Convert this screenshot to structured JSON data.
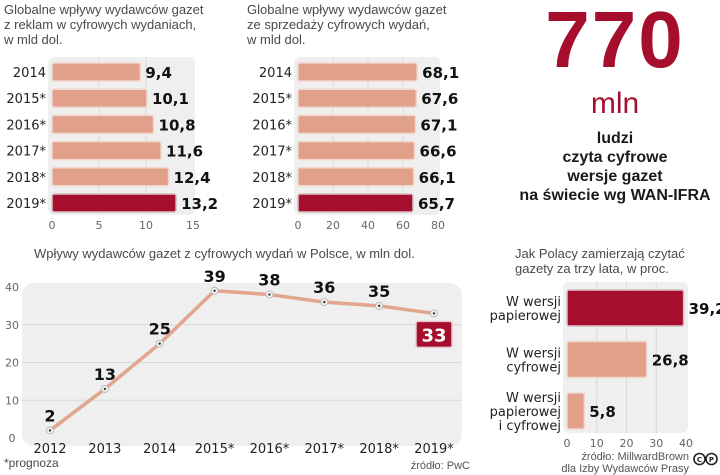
{
  "colors": {
    "accent": "#a50f2d",
    "bar": "#e0a08a",
    "line": "#e2a58e",
    "panel": "#efefef",
    "grid": "#d8d8d8"
  },
  "chart_data": [
    {
      "id": "ads",
      "type": "bar",
      "orientation": "horizontal",
      "title": "Globalne wpływy wydawców gazet\nz reklam w cyfrowych wydaniach,\nw mld dol.",
      "categories": [
        "2014",
        "2015*",
        "2016*",
        "2017*",
        "2018*",
        "2019*"
      ],
      "values": [
        9.4,
        10.1,
        10.8,
        11.6,
        12.4,
        13.2
      ],
      "value_labels": [
        "9,4",
        "10,1",
        "10,8",
        "11,6",
        "12,4",
        "13,2"
      ],
      "highlight_index": 5,
      "xlim": [
        0,
        15
      ],
      "xticks": [
        0,
        5,
        10,
        15
      ],
      "grid": true
    },
    {
      "id": "sales",
      "type": "bar",
      "orientation": "horizontal",
      "title": "Globalne wpływy wydawców gazet\nze sprzedaży cyfrowych wydań,\nw mld dol.",
      "categories": [
        "2014",
        "2015*",
        "2016*",
        "2017*",
        "2018*",
        "2019*"
      ],
      "values": [
        68.1,
        67.6,
        67.1,
        66.6,
        66.1,
        65.7
      ],
      "value_labels": [
        "68,1",
        "67,6",
        "67,1",
        "66,6",
        "66,1",
        "65,7"
      ],
      "highlight_index": 5,
      "xlim": [
        0,
        80
      ],
      "xticks": [
        0,
        20,
        40,
        60,
        80
      ],
      "grid": true
    },
    {
      "id": "poland",
      "type": "line",
      "title": "Wpływy wydawców gazet z cyfrowych wydań w Polsce, w mln dol.",
      "x": [
        "2012",
        "2013",
        "2014",
        "2015*",
        "2016*",
        "2017*",
        "2018*",
        "2019*"
      ],
      "values": [
        2,
        13,
        25,
        39,
        38,
        36,
        35,
        33
      ],
      "value_labels": [
        "2",
        "13",
        "25",
        "39",
        "38",
        "36",
        "35",
        "33"
      ],
      "highlight_index": 7,
      "ylim": [
        0,
        40
      ],
      "yticks": [
        0,
        10,
        20,
        30,
        40
      ],
      "grid": true,
      "footnote": "*prognoza",
      "source": "źródło: PwC"
    },
    {
      "id": "survey",
      "type": "bar",
      "orientation": "horizontal",
      "title": "Jak Polacy zamierzają czytać\ngazety za trzy lata, w proc.",
      "categories": [
        "W wersji\npapierowej",
        "W wersji\ncyfrowej",
        "W wersji\npapierowej\ni cyfrowej"
      ],
      "values": [
        39.2,
        26.8,
        5.8
      ],
      "value_labels": [
        "39,2",
        "26,8",
        "5,8"
      ],
      "highlight_index": 0,
      "xlim": [
        0,
        40
      ],
      "xticks": [
        0,
        10,
        20,
        30,
        40
      ],
      "grid": true,
      "source": "źródło: MillwardBrown\ndla Izby Wydawców Prasy"
    }
  ],
  "headline": {
    "number": "770",
    "unit": "mln",
    "description": "ludzi\nczyta cyfrowe\nwersje gazet\nna świecie wg WAN-IFRA"
  },
  "license_icon": "creative-commons-icon"
}
